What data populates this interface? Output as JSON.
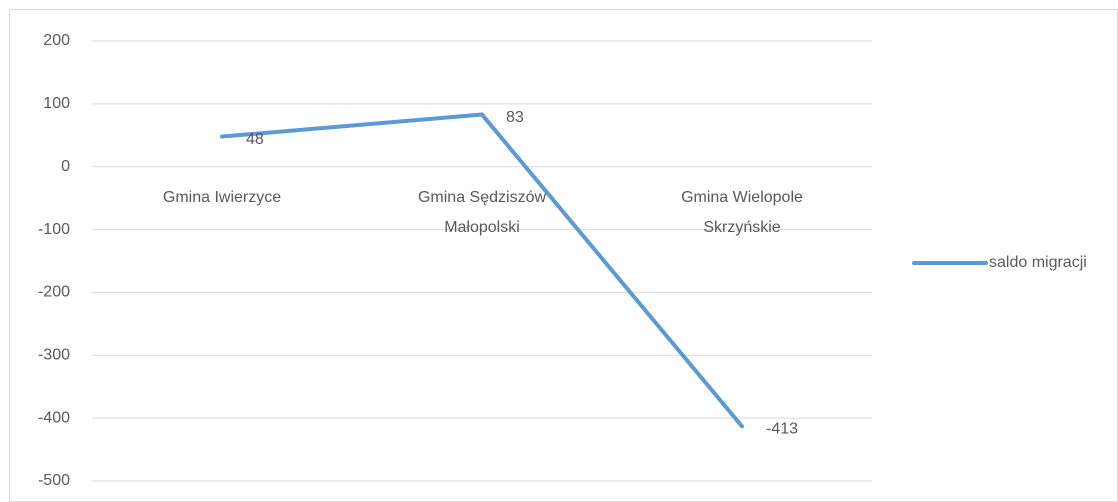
{
  "chart_data": {
    "type": "line",
    "categories": [
      "Gmina Iwierzyce",
      "Gmina Sędziszów Małopolski",
      "Gmina Wielopole Skrzyńskie"
    ],
    "series": [
      {
        "name": "saldo migracji",
        "color": "#5b9bd5",
        "values": [
          48,
          83,
          -413
        ]
      }
    ],
    "ylim": [
      -500,
      200
    ],
    "yticks": [
      -500,
      -400,
      -300,
      -200,
      -100,
      0,
      100,
      200
    ],
    "grid": true,
    "legend": "right"
  }
}
